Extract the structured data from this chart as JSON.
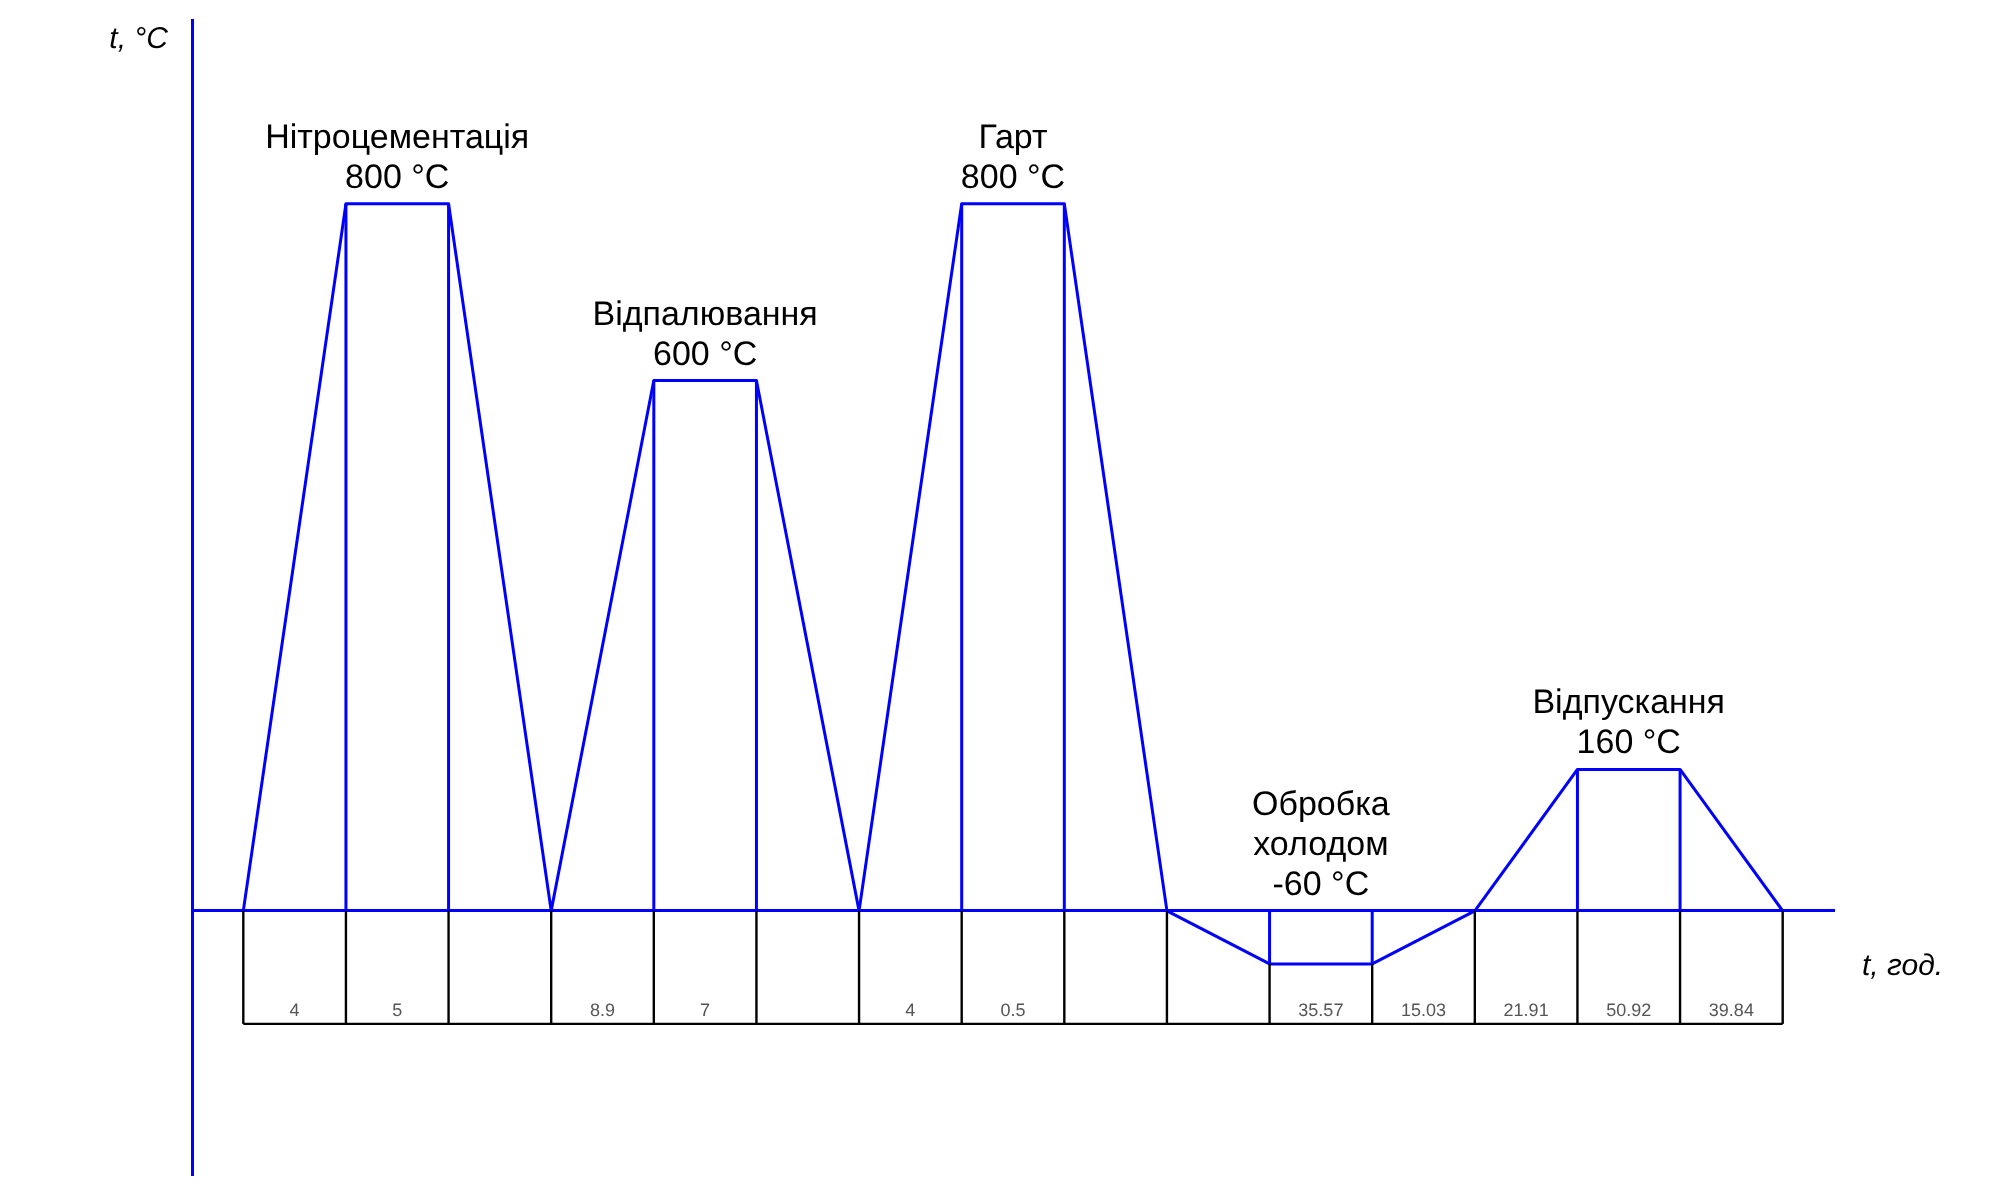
{
  "chart_data": {
    "type": "line",
    "xlabel": "t, год.",
    "ylabel": "t, °C",
    "tick_labels": false,
    "grid": "x",
    "categories": [
      null,
      null,
      null,
      null,
      null,
      null,
      null,
      null,
      null,
      null,
      null,
      null,
      null,
      null,
      null,
      null
    ],
    "series": [
      {
        "color": "#0000ff",
        "values": [
          0,
          800,
          800,
          0,
          600,
          600,
          0,
          800,
          800,
          0,
          -60,
          -60,
          0,
          160,
          160,
          0
        ],
        "value_labels": [
          null,
          "800 °C",
          null,
          null,
          "600 °C",
          null,
          null,
          "800 °C",
          null,
          null,
          "-60 °C",
          null,
          null,
          "160 °C",
          null,
          null
        ]
      }
    ],
    "annotations": [
      "Нітроцементація",
      "Відпалювання",
      "Гарт",
      "Обробка\nхолодом",
      "Відпускання",
      "4",
      "5",
      null,
      "8.9",
      "7",
      null,
      "4",
      "0.5",
      null,
      null,
      "35.57",
      "15.03",
      "21.91",
      "50.92",
      "39.84"
    ]
  }
}
